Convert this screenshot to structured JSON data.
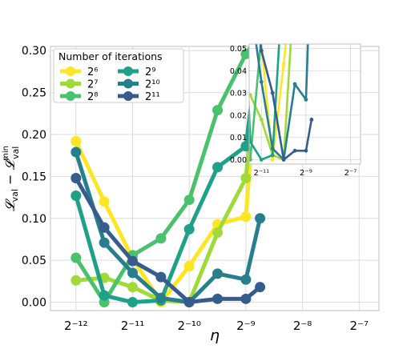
{
  "chart_data": [
    {
      "type": "line",
      "title": "",
      "xscale": "log2",
      "x_ticks": [
        -12,
        -11,
        -10,
        -9,
        -8,
        -7
      ],
      "x_tick_labels": [
        "2⁻¹²",
        "2⁻¹¹",
        "2⁻¹⁰",
        "2⁻⁹",
        "2⁻⁸",
        "2⁻⁷"
      ],
      "xlabel": "η",
      "ylabel": "𝓛val − 𝓛valmin",
      "ylim": [
        -0.01,
        0.305
      ],
      "y_ticks": [
        0.0,
        0.05,
        0.1,
        0.15,
        0.2,
        0.25,
        0.3
      ],
      "y_tick_labels": [
        "0.00",
        "0.05",
        "0.10",
        "0.15",
        "0.20",
        "0.25",
        "0.30"
      ],
      "legend": {
        "title": "Number of iterations",
        "position": "top-left",
        "columns": 2
      },
      "x": [
        -12,
        -11.5,
        -11,
        -10.5,
        -10,
        -9.5,
        -9,
        -8.75
      ],
      "series": [
        {
          "name": "2⁶",
          "color": "#fde725",
          "values": [
            0.192,
            0.12,
            0.052,
            0.0,
            0.043,
            0.093,
            0.102,
            0.32
          ]
        },
        {
          "name": "2⁷",
          "color": "#a0da39",
          "values": [
            0.026,
            0.029,
            0.018,
            0.002,
            0.0,
            0.083,
            0.148,
            0.32
          ]
        },
        {
          "name": "2⁸",
          "color": "#4ac16d",
          "values": [
            0.053,
            0.0,
            0.056,
            0.076,
            0.122,
            0.229,
            0.296,
            0.32
          ]
        },
        {
          "name": "2⁹",
          "color": "#1fa187",
          "values": [
            0.127,
            0.008,
            0.0,
            0.002,
            0.087,
            0.161,
            0.186,
            0.32
          ]
        },
        {
          "name": "2¹⁰",
          "color": "#277f8e",
          "values": [
            0.179,
            0.071,
            0.035,
            0.005,
            0.0,
            0.034,
            0.027,
            0.1
          ]
        },
        {
          "name": "2¹¹",
          "color": "#365c8d",
          "values": [
            0.148,
            0.089,
            0.049,
            0.03,
            0.0,
            0.004,
            0.004,
            0.018
          ]
        }
      ]
    },
    {
      "type": "line",
      "title": "",
      "role": "inset",
      "xscale": "log2",
      "x_ticks": [
        -11,
        -9,
        -7
      ],
      "x_tick_labels": [
        "2⁻¹¹",
        "2⁻⁹",
        "2⁻⁷"
      ],
      "ylim": [
        -0.002,
        0.052
      ],
      "y_ticks": [
        0.0,
        0.01,
        0.02,
        0.03,
        0.04,
        0.05
      ],
      "y_tick_labels": [
        "0.00",
        "0.01",
        "0.02",
        "0.03",
        "0.04",
        "0.05"
      ]
    }
  ]
}
